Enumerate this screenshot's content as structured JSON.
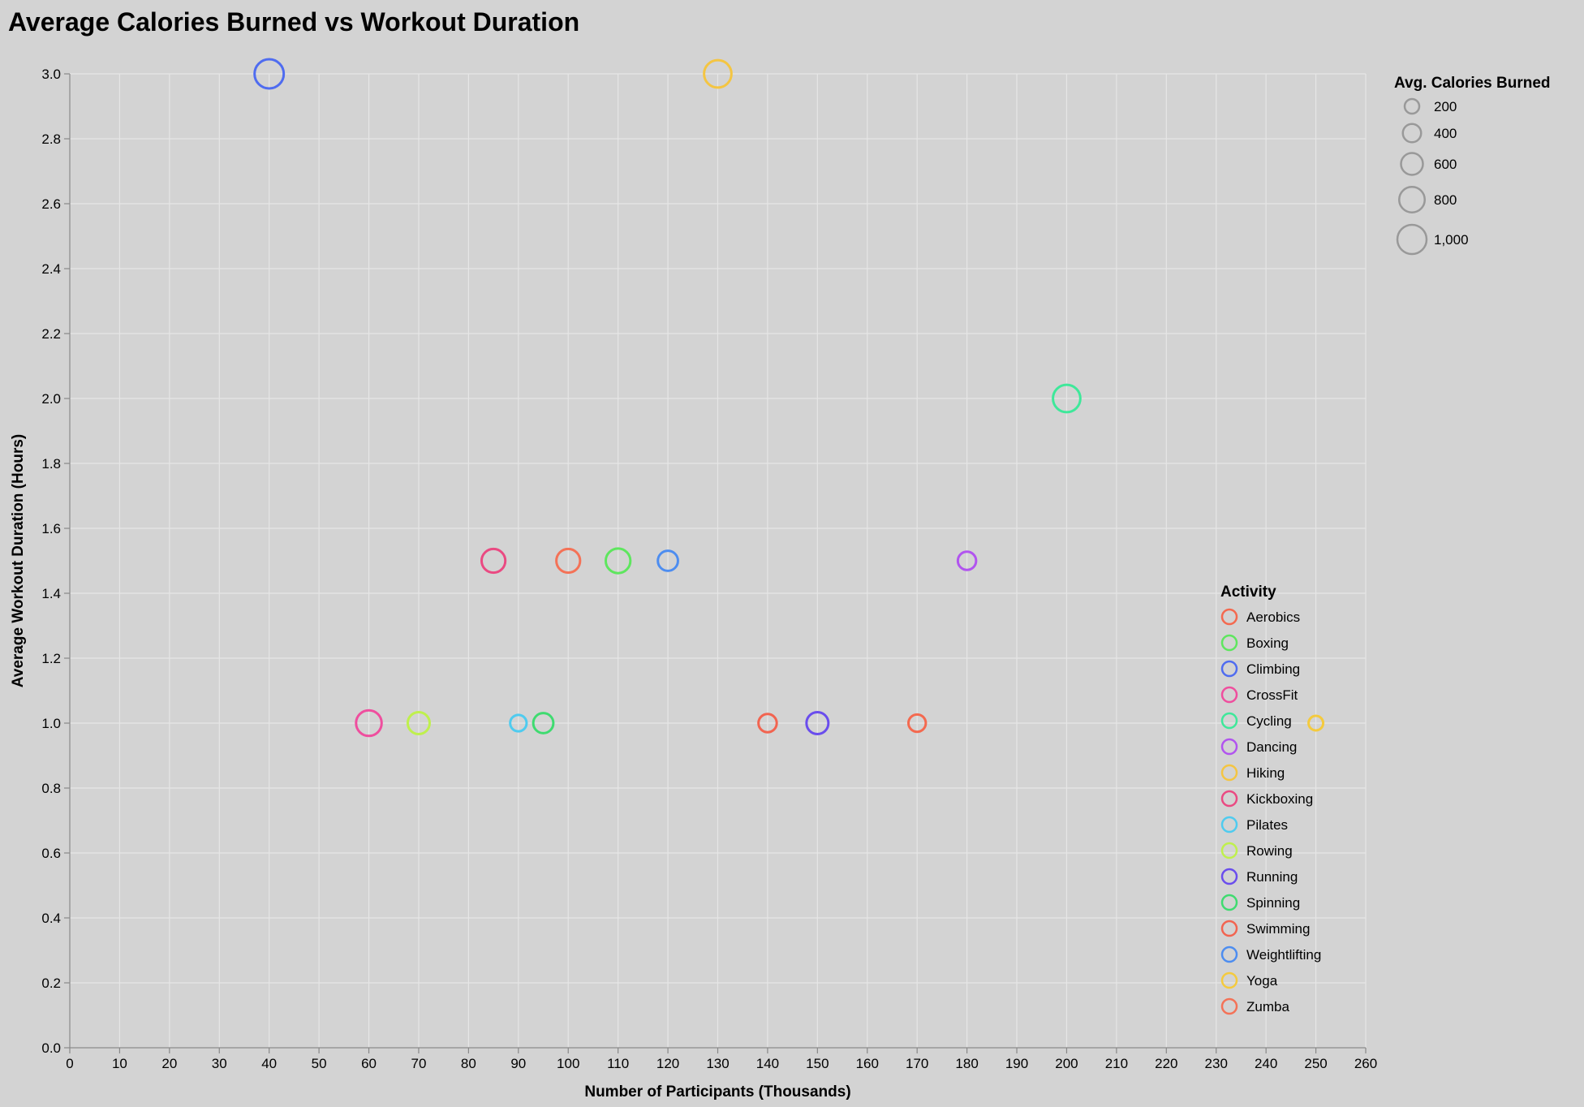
{
  "chart_data": {
    "type": "scatter",
    "title": "Average Calories Burned vs Workout Duration",
    "xlabel": "Number of Participants (Thousands)",
    "ylabel": "Average Workout Duration (Hours)",
    "xlim": [
      0,
      260
    ],
    "ylim": [
      0,
      3.0
    ],
    "x_ticks": [
      0,
      10,
      20,
      30,
      40,
      50,
      60,
      70,
      80,
      90,
      100,
      110,
      120,
      130,
      140,
      150,
      160,
      170,
      180,
      190,
      200,
      210,
      220,
      230,
      240,
      250,
      260
    ],
    "y_ticks": [
      0.0,
      0.2,
      0.4,
      0.6,
      0.8,
      1.0,
      1.2,
      1.4,
      1.6,
      1.8,
      2.0,
      2.2,
      2.4,
      2.6,
      2.8,
      3.0
    ],
    "grid": true,
    "size_legend": {
      "title": "Avg. Calories Burned",
      "placement": "top-right",
      "values": [
        200,
        400,
        600,
        800,
        1000
      ],
      "labels": [
        "200",
        "400",
        "600",
        "800",
        "1,000"
      ]
    },
    "color_legend": {
      "title": "Activity",
      "placement": "right"
    },
    "size_domain": [
      200,
      1000
    ],
    "points": [
      {
        "activity": "Aerobics",
        "x": 170,
        "y": 1.0,
        "calories": 350,
        "color": "#f4694f"
      },
      {
        "activity": "Boxing",
        "x": 110,
        "y": 1.5,
        "calories": 750,
        "color": "#5ee65e"
      },
      {
        "activity": "Climbing",
        "x": 40,
        "y": 3.0,
        "calories": 1000,
        "color": "#4f6cf0"
      },
      {
        "activity": "CrossFit",
        "x": 60,
        "y": 1.0,
        "calories": 800,
        "color": "#ef4e9e"
      },
      {
        "activity": "Cycling",
        "x": 200,
        "y": 2.0,
        "calories": 900,
        "color": "#3ee89a"
      },
      {
        "activity": "Dancing",
        "x": 180,
        "y": 1.5,
        "calories": 400,
        "color": "#b154ef"
      },
      {
        "activity": "Hiking",
        "x": 130,
        "y": 3.0,
        "calories": 900,
        "color": "#f4c542"
      },
      {
        "activity": "Kickboxing",
        "x": 85,
        "y": 1.5,
        "calories": 700,
        "color": "#ea4a82"
      },
      {
        "activity": "Pilates",
        "x": 90,
        "y": 1.0,
        "calories": 300,
        "color": "#4fcbef"
      },
      {
        "activity": "Rowing",
        "x": 70,
        "y": 1.0,
        "calories": 600,
        "color": "#bff04d"
      },
      {
        "activity": "Running",
        "x": 150,
        "y": 1.0,
        "calories": 600,
        "color": "#6a4ded"
      },
      {
        "activity": "Spinning",
        "x": 95,
        "y": 1.0,
        "calories": 500,
        "color": "#3fdb70"
      },
      {
        "activity": "Swimming",
        "x": 140,
        "y": 1.0,
        "calories": 400,
        "color": "#f26450"
      },
      {
        "activity": "Weightlifting",
        "x": 120,
        "y": 1.5,
        "calories": 500,
        "color": "#4d8df0"
      },
      {
        "activity": "Yoga",
        "x": 250,
        "y": 1.0,
        "calories": 200,
        "color": "#f4ca3e"
      },
      {
        "activity": "Zumba",
        "x": 100,
        "y": 1.5,
        "calories": 700,
        "color": "#f47257"
      }
    ]
  }
}
